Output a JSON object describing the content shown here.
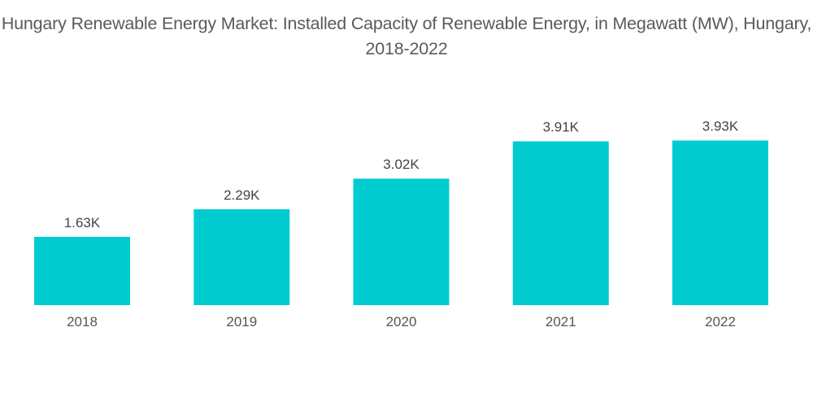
{
  "chart_data": {
    "type": "bar",
    "title": "Hungary Renewable Energy Market: Installed Capacity of Renewable Energy, in Megawatt (MW), Hungary, 2018-2022",
    "xlabel": "",
    "ylabel": "",
    "categories": [
      "2018",
      "2019",
      "2020",
      "2021",
      "2022"
    ],
    "values": [
      1630,
      2290,
      3020,
      3910,
      3930
    ],
    "data_labels": [
      "1.63K",
      "2.29K",
      "3.02K",
      "3.91K",
      "3.93K"
    ],
    "ylim": [
      0,
      4000
    ],
    "grid": false,
    "legend": "none",
    "bar_color": "#00ccd0"
  }
}
